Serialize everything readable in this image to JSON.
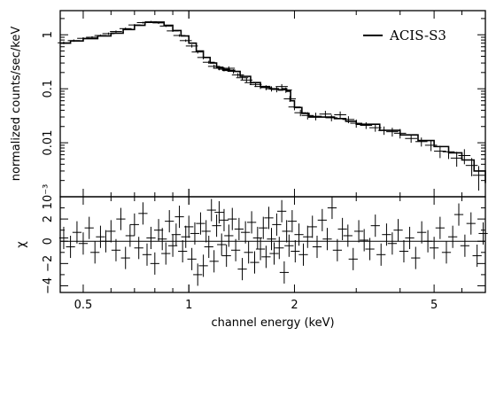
{
  "chart_data": [
    {
      "panel": "spectrum",
      "type": "scatter",
      "xlabel": "",
      "ylabel": "normalized counts/sec/keV",
      "x_scale": "log",
      "y_scale": "log",
      "xlim": [
        0.43,
        7.0
      ],
      "ylim": [
        0.001,
        2.8
      ],
      "y_ticks": [
        {
          "value": 0.001,
          "label": "10⁻³"
        },
        {
          "value": 0.01,
          "label": "0.01"
        },
        {
          "value": 0.1,
          "label": "0.1"
        },
        {
          "value": 1,
          "label": "1"
        }
      ],
      "legend": {
        "position": "top-right",
        "entries": [
          "ACIS-S3"
        ]
      },
      "series": [
        {
          "name": "ACIS-S3",
          "style": "crosses-with-model-histogram",
          "model": [
            [
              0.43,
              0.7
            ],
            [
              0.46,
              0.77
            ],
            [
              0.5,
              0.85
            ],
            [
              0.55,
              0.95
            ],
            [
              0.6,
              1.07
            ],
            [
              0.65,
              1.25
            ],
            [
              0.7,
              1.5
            ],
            [
              0.75,
              1.7
            ],
            [
              0.8,
              1.72
            ],
            [
              0.85,
              1.5
            ],
            [
              0.9,
              1.2
            ],
            [
              0.95,
              0.95
            ],
            [
              1.0,
              0.7
            ],
            [
              1.05,
              0.5
            ],
            [
              1.1,
              0.38
            ],
            [
              1.15,
              0.3
            ],
            [
              1.2,
              0.25
            ],
            [
              1.25,
              0.22
            ],
            [
              1.3,
              0.22
            ],
            [
              1.35,
              0.21
            ],
            [
              1.4,
              0.17
            ],
            [
              1.5,
              0.13
            ],
            [
              1.6,
              0.11
            ],
            [
              1.7,
              0.1
            ],
            [
              1.8,
              0.095
            ],
            [
              1.85,
              0.1
            ],
            [
              1.9,
              0.09
            ],
            [
              1.95,
              0.06
            ],
            [
              2.0,
              0.045
            ],
            [
              2.1,
              0.035
            ],
            [
              2.2,
              0.03
            ],
            [
              2.4,
              0.03
            ],
            [
              2.6,
              0.028
            ],
            [
              2.8,
              0.025
            ],
            [
              3.0,
              0.022
            ],
            [
              3.5,
              0.017
            ],
            [
              4.0,
              0.014
            ],
            [
              4.5,
              0.011
            ],
            [
              5.0,
              0.0085
            ],
            [
              5.5,
              0.0065
            ],
            [
              6.0,
              0.0048
            ],
            [
              6.5,
              0.003
            ],
            [
              7.0,
              0.0018
            ]
          ],
          "points": [
            [
              0.44,
              0.71,
              0.04
            ],
            [
              0.47,
              0.78,
              0.04
            ],
            [
              0.5,
              0.86,
              0.04
            ],
            [
              0.53,
              0.9,
              0.04
            ],
            [
              0.56,
              0.97,
              0.04
            ],
            [
              0.59,
              1.05,
              0.05
            ],
            [
              0.62,
              1.15,
              0.05
            ],
            [
              0.66,
              1.3,
              0.06
            ],
            [
              0.7,
              1.52,
              0.06
            ],
            [
              0.74,
              1.68,
              0.07
            ],
            [
              0.78,
              1.74,
              0.07
            ],
            [
              0.82,
              1.66,
              0.07
            ],
            [
              0.86,
              1.45,
              0.06
            ],
            [
              0.9,
              1.18,
              0.05
            ],
            [
              0.94,
              0.97,
              0.05
            ],
            [
              0.98,
              0.78,
              0.04
            ],
            [
              1.02,
              0.62,
              0.04
            ],
            [
              1.06,
              0.48,
              0.03
            ],
            [
              1.1,
              0.38,
              0.03
            ],
            [
              1.14,
              0.31,
              0.02
            ],
            [
              1.18,
              0.26,
              0.02
            ],
            [
              1.22,
              0.24,
              0.02
            ],
            [
              1.26,
              0.23,
              0.02
            ],
            [
              1.3,
              0.24,
              0.02
            ],
            [
              1.34,
              0.21,
              0.02
            ],
            [
              1.38,
              0.18,
              0.015
            ],
            [
              1.42,
              0.16,
              0.015
            ],
            [
              1.46,
              0.145,
              0.014
            ],
            [
              1.5,
              0.13,
              0.013
            ],
            [
              1.55,
              0.12,
              0.012
            ],
            [
              1.6,
              0.11,
              0.011
            ],
            [
              1.66,
              0.105,
              0.011
            ],
            [
              1.72,
              0.1,
              0.011
            ],
            [
              1.78,
              0.097,
              0.011
            ],
            [
              1.84,
              0.11,
              0.012
            ],
            [
              1.89,
              0.095,
              0.011
            ],
            [
              1.94,
              0.065,
              0.008
            ],
            [
              2.0,
              0.046,
              0.006
            ],
            [
              2.08,
              0.036,
              0.005
            ],
            [
              2.18,
              0.032,
              0.005
            ],
            [
              2.3,
              0.031,
              0.005
            ],
            [
              2.45,
              0.034,
              0.005
            ],
            [
              2.55,
              0.029,
              0.004
            ],
            [
              2.7,
              0.033,
              0.005
            ],
            [
              2.85,
              0.027,
              0.004
            ],
            [
              3.0,
              0.023,
              0.004
            ],
            [
              3.2,
              0.021,
              0.003
            ],
            [
              3.4,
              0.019,
              0.003
            ],
            [
              3.6,
              0.017,
              0.003
            ],
            [
              3.8,
              0.016,
              0.003
            ],
            [
              4.0,
              0.015,
              0.003
            ],
            [
              4.3,
              0.012,
              0.002
            ],
            [
              4.6,
              0.0105,
              0.002
            ],
            [
              4.9,
              0.009,
              0.002
            ],
            [
              5.2,
              0.007,
              0.0018
            ],
            [
              5.5,
              0.0068,
              0.0018
            ],
            [
              5.8,
              0.0052,
              0.0016
            ],
            [
              6.1,
              0.0058,
              0.0018
            ],
            [
              6.4,
              0.0038,
              0.0014
            ],
            [
              6.7,
              0.0025,
              0.0012
            ]
          ]
        }
      ]
    },
    {
      "panel": "residuals",
      "type": "scatter",
      "xlabel": "channel energy (keV)",
      "ylabel": "χ",
      "x_scale": "log",
      "xlim": [
        0.43,
        7.0
      ],
      "ylim": [
        -4.6,
        4.0
      ],
      "x_ticks": [
        {
          "value": 0.5,
          "label": "0.5"
        },
        {
          "value": 1,
          "label": "1"
        },
        {
          "value": 2,
          "label": "2"
        },
        {
          "value": 5,
          "label": "5"
        }
      ],
      "y_ticks": [
        {
          "value": -4,
          "label": "−4"
        },
        {
          "value": -2,
          "label": "−2"
        },
        {
          "value": 0,
          "label": "0"
        },
        {
          "value": 2,
          "label": "2"
        }
      ],
      "series": [
        {
          "name": "",
          "style": "crosses",
          "zero_line": true,
          "points": [
            [
              0.44,
              0.3
            ],
            [
              0.46,
              -0.5
            ],
            [
              0.48,
              0.8
            ],
            [
              0.5,
              -0.2
            ],
            [
              0.52,
              1.2
            ],
            [
              0.54,
              -1.0
            ],
            [
              0.56,
              0.4
            ],
            [
              0.58,
              0.0
            ],
            [
              0.6,
              0.9
            ],
            [
              0.62,
              -0.8
            ],
            [
              0.64,
              2.0
            ],
            [
              0.66,
              -1.5
            ],
            [
              0.68,
              0.5
            ],
            [
              0.7,
              1.5
            ],
            [
              0.72,
              -0.6
            ],
            [
              0.74,
              2.5
            ],
            [
              0.76,
              -1.2
            ],
            [
              0.78,
              0.3
            ],
            [
              0.8,
              -2.0
            ],
            [
              0.82,
              1.0
            ],
            [
              0.84,
              0.2
            ],
            [
              0.86,
              -1.1
            ],
            [
              0.88,
              1.8
            ],
            [
              0.9,
              -0.4
            ],
            [
              0.92,
              0.6
            ],
            [
              0.94,
              2.2
            ],
            [
              0.96,
              -0.9
            ],
            [
              0.98,
              0.4
            ],
            [
              1.0,
              1.3
            ],
            [
              1.02,
              -1.6
            ],
            [
              1.04,
              0.7
            ],
            [
              1.06,
              -3.0
            ],
            [
              1.08,
              1.6
            ],
            [
              1.1,
              -2.2
            ],
            [
              1.12,
              0.9
            ],
            [
              1.14,
              -0.5
            ],
            [
              1.16,
              2.8
            ],
            [
              1.18,
              -1.8
            ],
            [
              1.2,
              1.4
            ],
            [
              1.22,
              2.6
            ],
            [
              1.24,
              -0.3
            ],
            [
              1.26,
              1.9
            ],
            [
              1.28,
              -1.3
            ],
            [
              1.3,
              0.5
            ],
            [
              1.33,
              2.0
            ],
            [
              1.36,
              -0.8
            ],
            [
              1.39,
              1.1
            ],
            [
              1.42,
              -2.5
            ],
            [
              1.45,
              0.8
            ],
            [
              1.48,
              -1.0
            ],
            [
              1.51,
              1.7
            ],
            [
              1.54,
              -1.9
            ],
            [
              1.57,
              0.3
            ],
            [
              1.6,
              -0.7
            ],
            [
              1.63,
              1.2
            ],
            [
              1.66,
              -1.4
            ],
            [
              1.69,
              2.1
            ],
            [
              1.72,
              0.2
            ],
            [
              1.75,
              -1.1
            ],
            [
              1.78,
              1.5
            ],
            [
              1.81,
              -0.6
            ],
            [
              1.84,
              2.7
            ],
            [
              1.87,
              -2.8
            ],
            [
              1.9,
              0.9
            ],
            [
              1.93,
              -0.4
            ],
            [
              1.97,
              1.8
            ],
            [
              2.01,
              -0.9
            ],
            [
              2.06,
              0.6
            ],
            [
              2.12,
              -1.2
            ],
            [
              2.18,
              0.4
            ],
            [
              2.25,
              1.3
            ],
            [
              2.32,
              -0.5
            ],
            [
              2.4,
              1.9
            ],
            [
              2.48,
              0.2
            ],
            [
              2.56,
              3.0
            ],
            [
              2.65,
              -0.8
            ],
            [
              2.74,
              1.1
            ],
            [
              2.84,
              0.5
            ],
            [
              2.94,
              -1.6
            ],
            [
              3.05,
              0.9
            ],
            [
              3.16,
              0.1
            ],
            [
              3.28,
              -0.7
            ],
            [
              3.4,
              1.4
            ],
            [
              3.53,
              -1.2
            ],
            [
              3.66,
              0.6
            ],
            [
              3.8,
              -0.2
            ],
            [
              3.95,
              1.0
            ],
            [
              4.1,
              -0.9
            ],
            [
              4.26,
              0.3
            ],
            [
              4.43,
              -1.5
            ],
            [
              4.61,
              0.8
            ],
            [
              4.8,
              0.0
            ],
            [
              5.0,
              -0.6
            ],
            [
              5.2,
              1.2
            ],
            [
              5.42,
              -1.0
            ],
            [
              5.65,
              0.4
            ],
            [
              5.88,
              2.4
            ],
            [
              6.12,
              -0.4
            ],
            [
              6.37,
              1.6
            ],
            [
              6.63,
              -1.3
            ],
            [
              6.9,
              0.7
            ]
          ]
        }
      ]
    }
  ]
}
